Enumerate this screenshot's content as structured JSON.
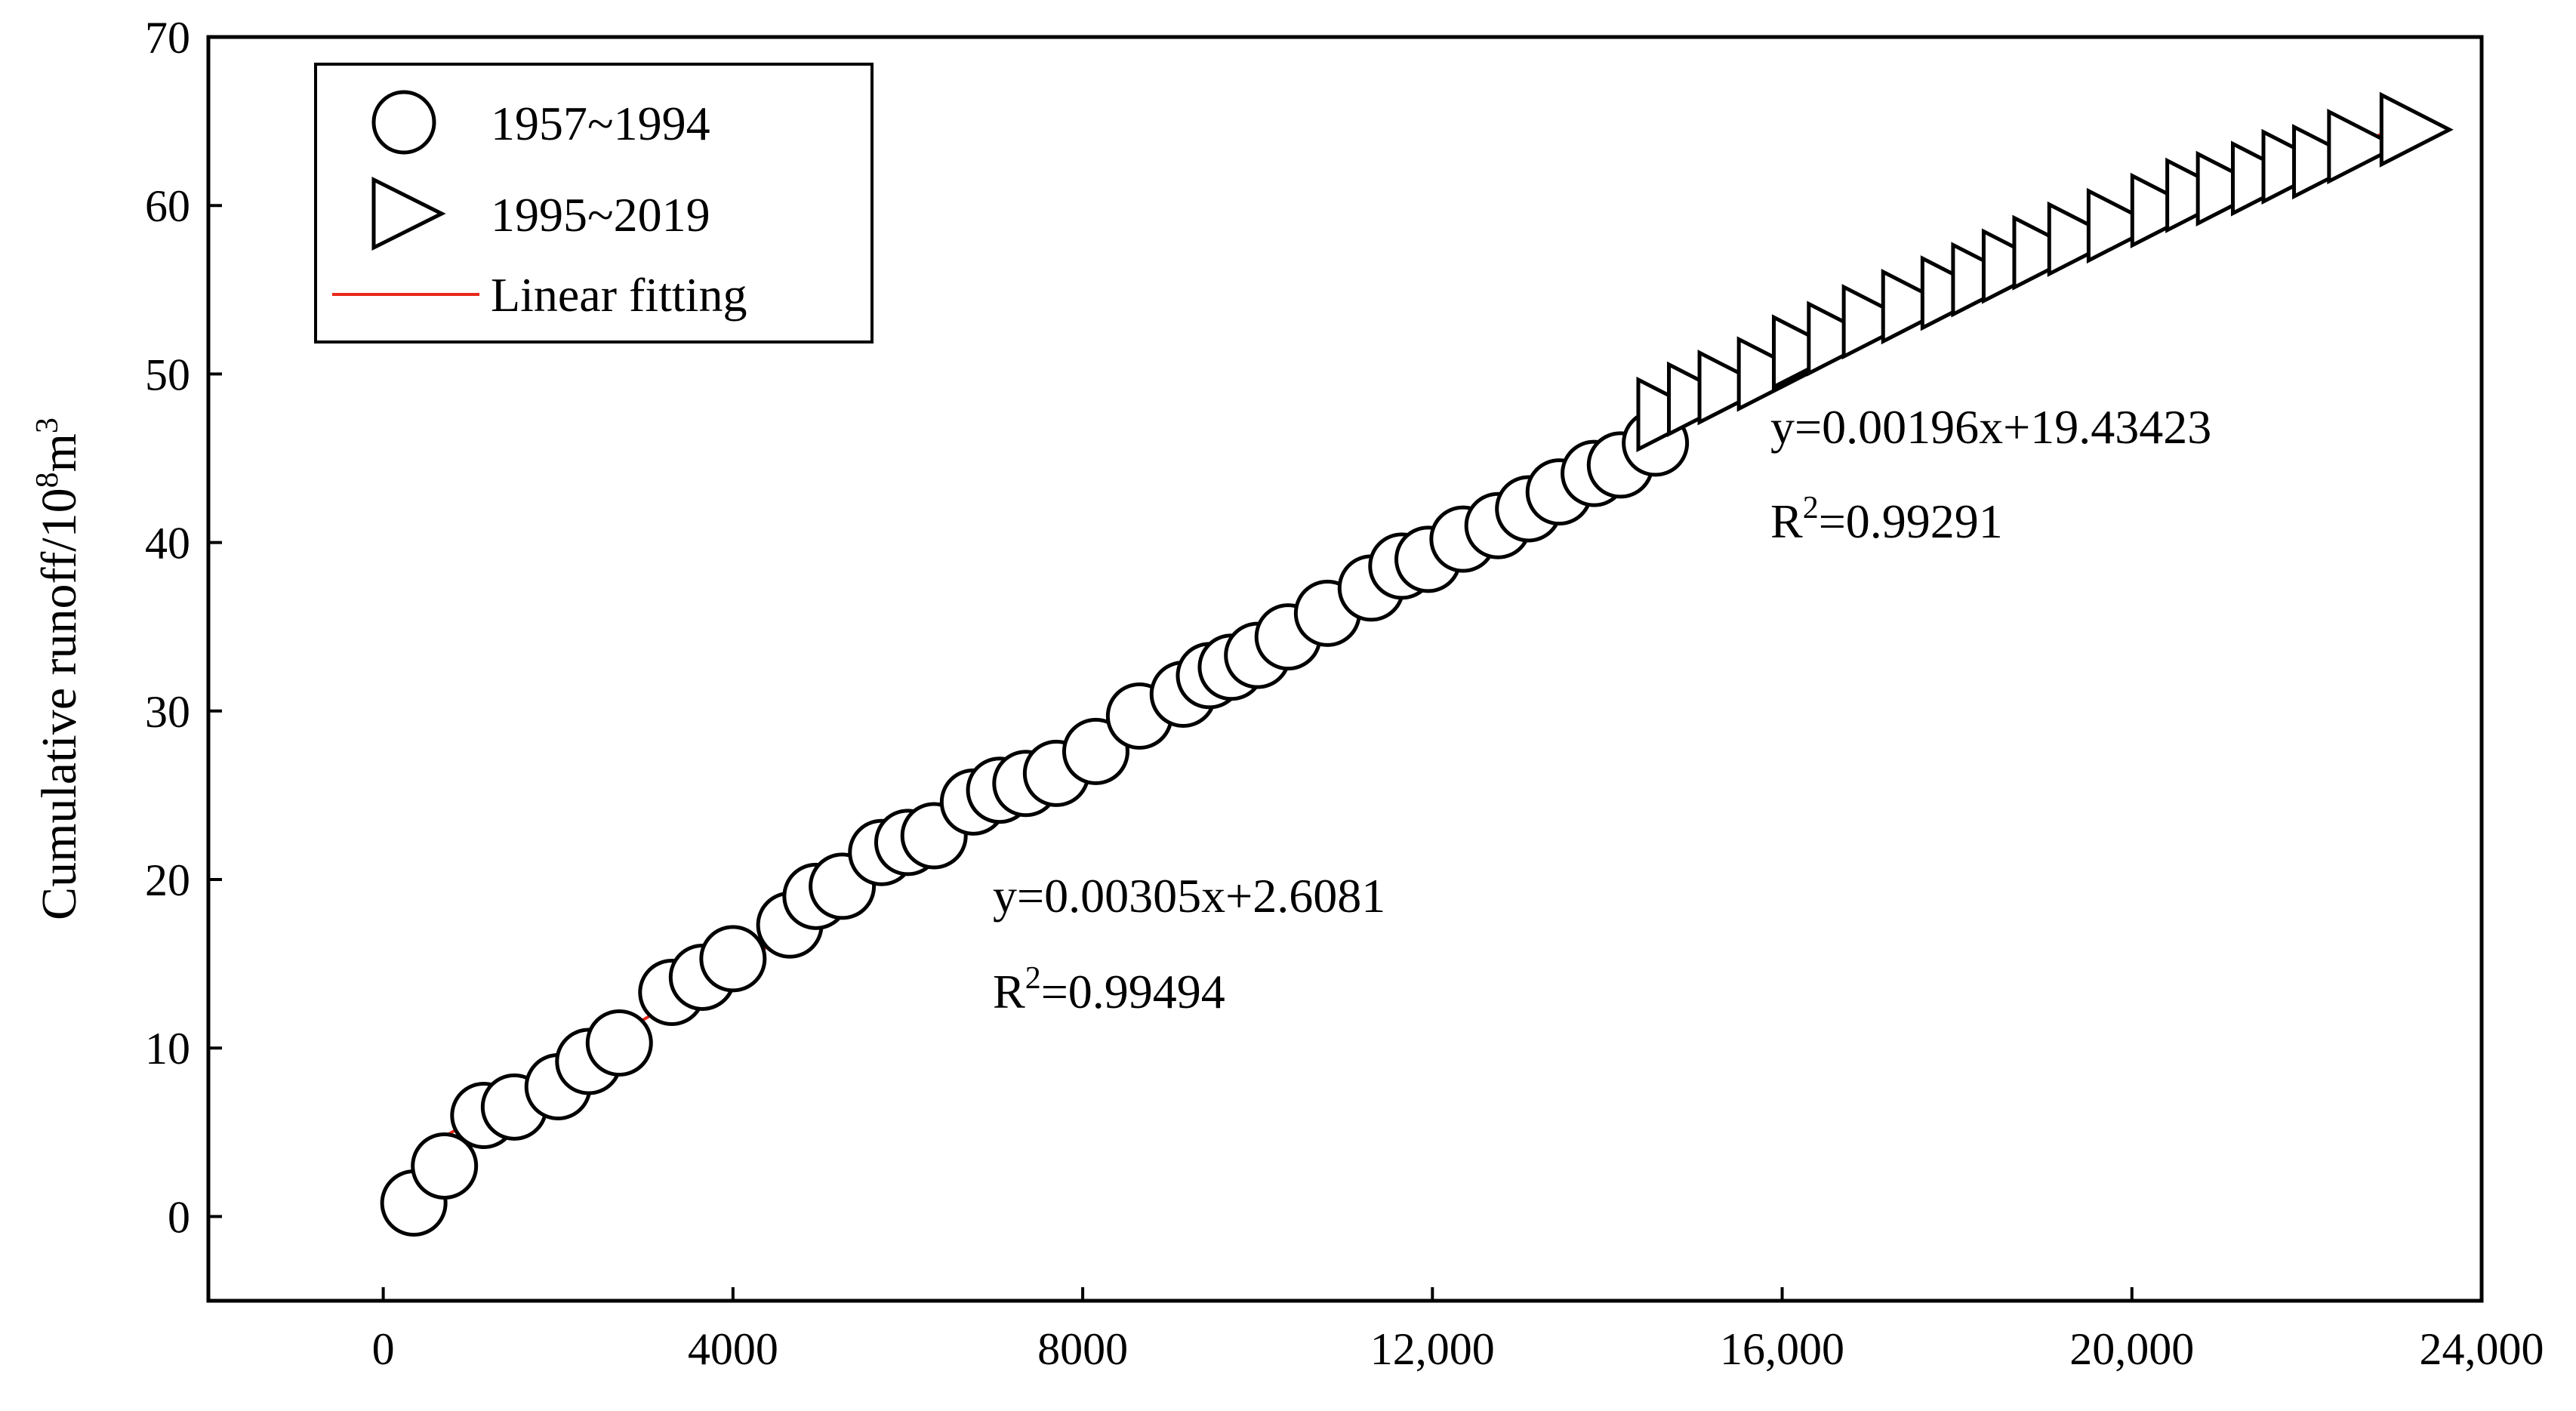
{
  "chart_data": {
    "type": "scatter",
    "title": "",
    "xlabel": "",
    "ylabel": {
      "main": "Cumulative runoff/10",
      "sup1": "8",
      "mid": "m",
      "sup2": "3"
    },
    "xlim": [
      -2000,
      24000
    ],
    "ylim": [
      -5,
      70
    ],
    "x_ticks": [
      0,
      4000,
      8000,
      12000,
      16000,
      20000,
      24000
    ],
    "x_tick_labels": [
      "0",
      "4000",
      "8000",
      "12,000",
      "16,000",
      "20,000",
      "24,000"
    ],
    "y_ticks": [
      0,
      10,
      20,
      30,
      40,
      50,
      60,
      70
    ],
    "y_tick_labels": [
      "0",
      "10",
      "20",
      "30",
      "40",
      "50",
      "60",
      "70"
    ],
    "grid": false,
    "legend": {
      "position": "top-left",
      "entries": [
        "1957~1994",
        "1995~2019",
        "Linear fitting"
      ]
    },
    "series": [
      {
        "name": "1957~1994",
        "marker": "circle",
        "points": [
          [
            350,
            0.8
          ],
          [
            700,
            3.0
          ],
          [
            1150,
            6.0
          ],
          [
            1500,
            6.5
          ],
          [
            2000,
            7.7
          ],
          [
            2350,
            9.2
          ],
          [
            2700,
            10.3
          ],
          [
            3300,
            13.3
          ],
          [
            3650,
            14.2
          ],
          [
            4000,
            15.3
          ],
          [
            4650,
            17.3
          ],
          [
            4950,
            19.0
          ],
          [
            5250,
            19.6
          ],
          [
            5700,
            21.6
          ],
          [
            6000,
            22.2
          ],
          [
            6300,
            22.6
          ],
          [
            6750,
            24.6
          ],
          [
            7050,
            25.3
          ],
          [
            7350,
            25.7
          ],
          [
            7700,
            26.3
          ],
          [
            8150,
            27.6
          ],
          [
            8650,
            29.7
          ],
          [
            9150,
            31.0
          ],
          [
            9450,
            32.1
          ],
          [
            9700,
            32.6
          ],
          [
            10000,
            33.3
          ],
          [
            10350,
            34.4
          ],
          [
            10800,
            35.8
          ],
          [
            11300,
            37.3
          ],
          [
            11650,
            38.6
          ],
          [
            11950,
            39.0
          ],
          [
            12350,
            40.2
          ],
          [
            12750,
            41.0
          ],
          [
            13100,
            42.0
          ],
          [
            13450,
            43.0
          ],
          [
            13850,
            44.1
          ],
          [
            14150,
            44.6
          ],
          [
            14550,
            45.9
          ]
        ]
      },
      {
        "name": "1995~2019",
        "marker": "triangle-right",
        "points": [
          [
            14700,
            47.6
          ],
          [
            15050,
            48.5
          ],
          [
            15400,
            49.2
          ],
          [
            15850,
            50.0
          ],
          [
            16250,
            51.3
          ],
          [
            16650,
            52.1
          ],
          [
            17050,
            53.1
          ],
          [
            17500,
            54.0
          ],
          [
            17950,
            54.8
          ],
          [
            18300,
            55.6
          ],
          [
            18650,
            56.4
          ],
          [
            19000,
            57.2
          ],
          [
            19400,
            58.0
          ],
          [
            19850,
            58.8
          ],
          [
            20350,
            59.7
          ],
          [
            20750,
            60.6
          ],
          [
            21100,
            61.0
          ],
          [
            21500,
            61.6
          ],
          [
            21850,
            62.3
          ],
          [
            22200,
            62.6
          ],
          [
            22600,
            63.5
          ],
          [
            23200,
            64.5
          ]
        ]
      }
    ],
    "fits": [
      {
        "name": "Linear fitting",
        "slope": 0.00305,
        "intercept": 2.6081,
        "x_range": [
          350,
          14550
        ],
        "color": "#e8281c"
      },
      {
        "name": "Linear fitting",
        "slope": 0.00196,
        "intercept": 19.43423,
        "x_range": [
          14800,
          23200
        ],
        "color": "#e8281c"
      }
    ],
    "annotations": [
      {
        "equation": "y=0.00305x+2.6081",
        "r2_prefix": "R",
        "r2_sup": "2",
        "r2_value": "=0.99494"
      },
      {
        "equation": "y=0.00196x+19.43423",
        "r2_prefix": "R",
        "r2_sup": "2",
        "r2_value": "=0.99291"
      }
    ]
  }
}
